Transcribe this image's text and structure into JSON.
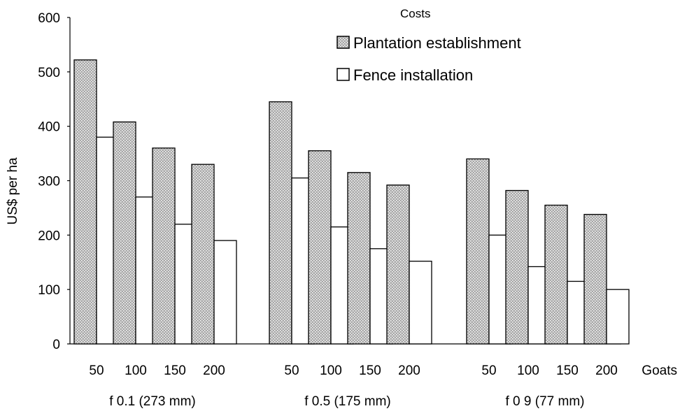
{
  "chart_data": {
    "type": "bar",
    "ylabel": "US$ per ha",
    "ylim": [
      0,
      600
    ],
    "yticks": [
      0,
      100,
      200,
      300,
      400,
      500,
      600
    ],
    "grid": false,
    "legend": {
      "title": "Costs",
      "placement": "top-right"
    },
    "x_unit_label": "Goats",
    "groups": [
      {
        "label": "f 0.1 (273 mm)",
        "categories": [
          "50",
          "100",
          "150",
          "200"
        ],
        "series": [
          {
            "name": "Plantation establishment",
            "values": [
              522,
              408,
              360,
              330
            ]
          },
          {
            "name": "Fence installation",
            "values": [
              380,
              270,
              220,
              190
            ]
          }
        ]
      },
      {
        "label": "f 0.5 (175 mm)",
        "categories": [
          "50",
          "100",
          "150",
          "200"
        ],
        "series": [
          {
            "name": "Plantation establishment",
            "values": [
              445,
              355,
              315,
              292
            ]
          },
          {
            "name": "Fence installation",
            "values": [
              305,
              215,
              175,
              152
            ]
          }
        ]
      },
      {
        "label": "f 0 9 (77 mm)",
        "categories": [
          "50",
          "100",
          "150",
          "200"
        ],
        "series": [
          {
            "name": "Plantation establishment",
            "values": [
              340,
              282,
              255,
              238
            ]
          },
          {
            "name": "Fence installation",
            "values": [
              200,
              142,
              115,
              100
            ]
          }
        ]
      }
    ],
    "colors": {
      "plantation_fill": "#a8a8a8",
      "plantation_dots": "#ffffff",
      "fence_fill": "#ffffff",
      "stroke": "#000000"
    }
  }
}
